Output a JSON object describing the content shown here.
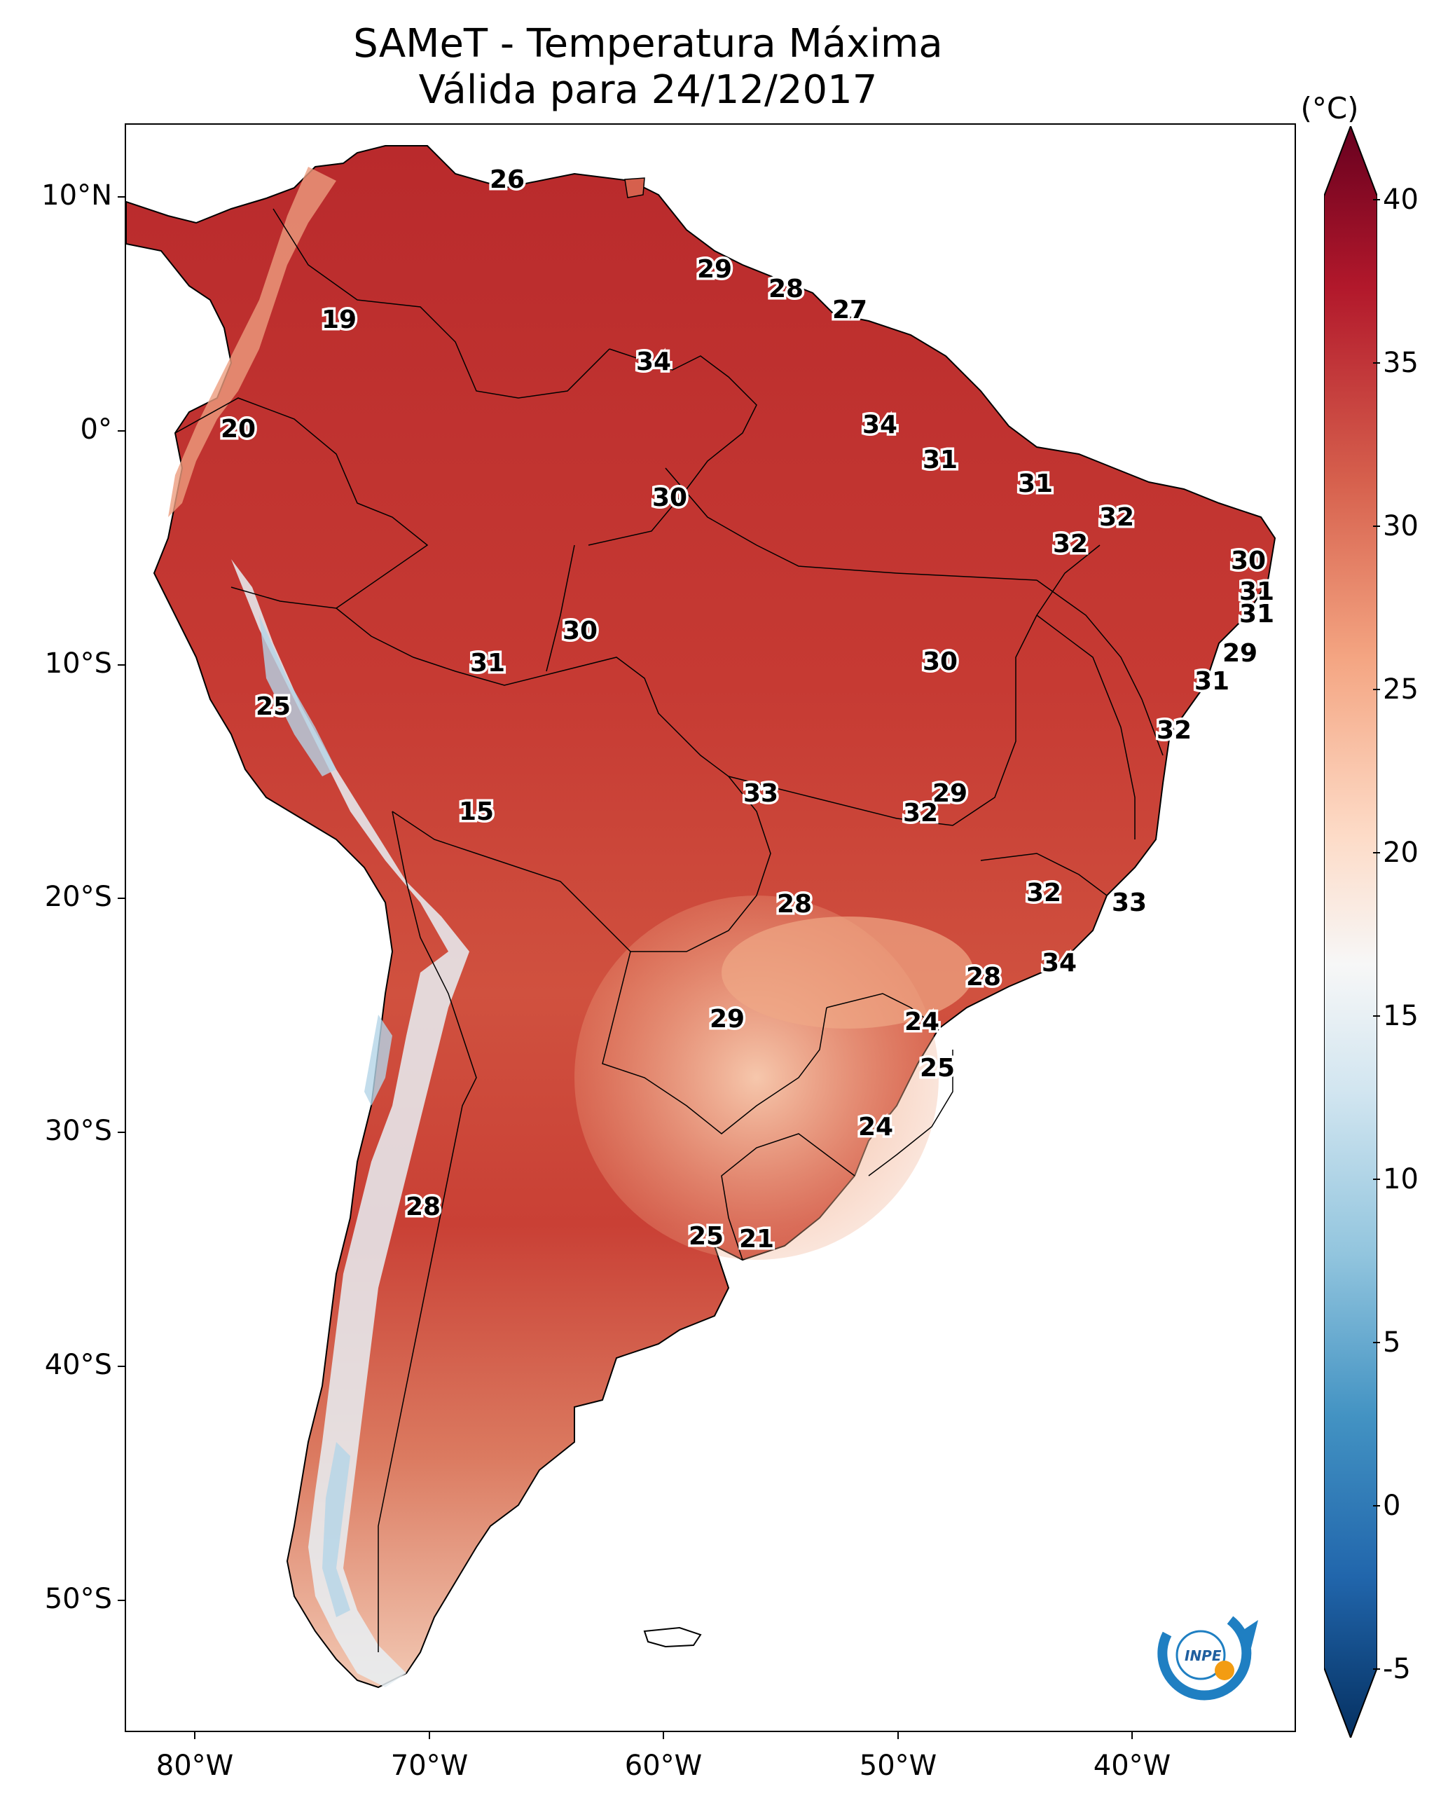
{
  "title": {
    "line1": "SAMeT - Temperatura Máxima",
    "line2": "Válida para 24/12/2017"
  },
  "map": {
    "region": "South America",
    "lon_range": [
      -83,
      -33
    ],
    "lat_range": [
      -56,
      13
    ],
    "lat_ticks": [
      "10°N",
      "0°",
      "10°S",
      "20°S",
      "30°S",
      "40°S",
      "50°S"
    ],
    "lon_ticks": [
      "80°W",
      "70°W",
      "60°W",
      "50°W",
      "40°W"
    ],
    "land_colors": {
      "hot": "#c8312f",
      "warm": "#e1775f",
      "mild": "#f4b89b",
      "cool": "#f6ece6",
      "cold": "#bcd9ea"
    },
    "isotherm_labels": [
      {
        "value": "26"
      },
      {
        "value": "29"
      },
      {
        "value": "28"
      },
      {
        "value": "27"
      },
      {
        "value": "19"
      },
      {
        "value": "34"
      },
      {
        "value": "20"
      },
      {
        "value": "34"
      },
      {
        "value": "31"
      },
      {
        "value": "30"
      },
      {
        "value": "31"
      },
      {
        "value": "32"
      },
      {
        "value": "32"
      },
      {
        "value": "30"
      },
      {
        "value": "31"
      },
      {
        "value": "31"
      },
      {
        "value": "30"
      },
      {
        "value": "31"
      },
      {
        "value": "29"
      },
      {
        "value": "30"
      },
      {
        "value": "31"
      },
      {
        "value": "25"
      },
      {
        "value": "32"
      },
      {
        "value": "15"
      },
      {
        "value": "33"
      },
      {
        "value": "29"
      },
      {
        "value": "32"
      },
      {
        "value": "28"
      },
      {
        "value": "32"
      },
      {
        "value": "33"
      },
      {
        "value": "34"
      },
      {
        "value": "28"
      },
      {
        "value": "29"
      },
      {
        "value": "24"
      },
      {
        "value": "25"
      },
      {
        "value": "24"
      },
      {
        "value": "28"
      },
      {
        "value": "25"
      },
      {
        "value": "21"
      }
    ]
  },
  "colorbar": {
    "unit": "(°C)",
    "ticks": [
      "40",
      "35",
      "30",
      "25",
      "20",
      "15",
      "10",
      "5",
      "0",
      "-5"
    ],
    "range": [
      -5,
      40
    ],
    "colors": [
      "#053061",
      "#2166ac",
      "#4393c3",
      "#92c5de",
      "#d1e5f0",
      "#f7f7f7",
      "#fddbc7",
      "#f4a582",
      "#d6604d",
      "#b2182b",
      "#67001f"
    ]
  },
  "logo": {
    "text": "INPE"
  }
}
